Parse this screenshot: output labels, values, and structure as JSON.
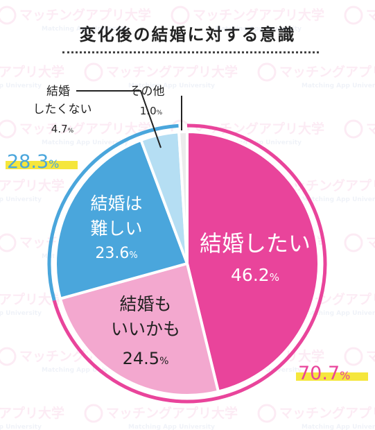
{
  "watermark": {
    "brand": "マッチングアプリ大学",
    "brand_en": "Matching App University"
  },
  "chart_data": {
    "type": "pie",
    "title": "変化後の結婚に対する意識",
    "slices": [
      {
        "label": "結婚したい",
        "value": 46.2,
        "value_text": "46.2",
        "unit": "%",
        "color": "#e9449b",
        "group": "positive"
      },
      {
        "label": "結婚もいいかも",
        "value": 24.5,
        "value_text": "24.5",
        "unit": "%",
        "color": "#f3a8cf",
        "group": "positive"
      },
      {
        "label": "結婚は難しい",
        "value": 23.6,
        "value_text": "23.6",
        "unit": "%",
        "color": "#4aa6dc",
        "group": "negative"
      },
      {
        "label": "結婚したくない",
        "value": 4.7,
        "value_text": "4.7",
        "unit": "%",
        "color": "#b5def3",
        "group": "negative"
      },
      {
        "label": "その他",
        "value": 1.0,
        "value_text": "1.0",
        "unit": "%",
        "color": "#ececec",
        "group": "other"
      }
    ],
    "group_totals": [
      {
        "group": "positive",
        "value": 70.7,
        "value_text": "70.7",
        "unit": "%",
        "ring_color": "#e9449b"
      },
      {
        "group": "negative",
        "value": 28.3,
        "value_text": "28.3",
        "unit": "%",
        "ring_color": "#4aa6dc"
      }
    ],
    "highlight_color": "#f5e63c"
  }
}
